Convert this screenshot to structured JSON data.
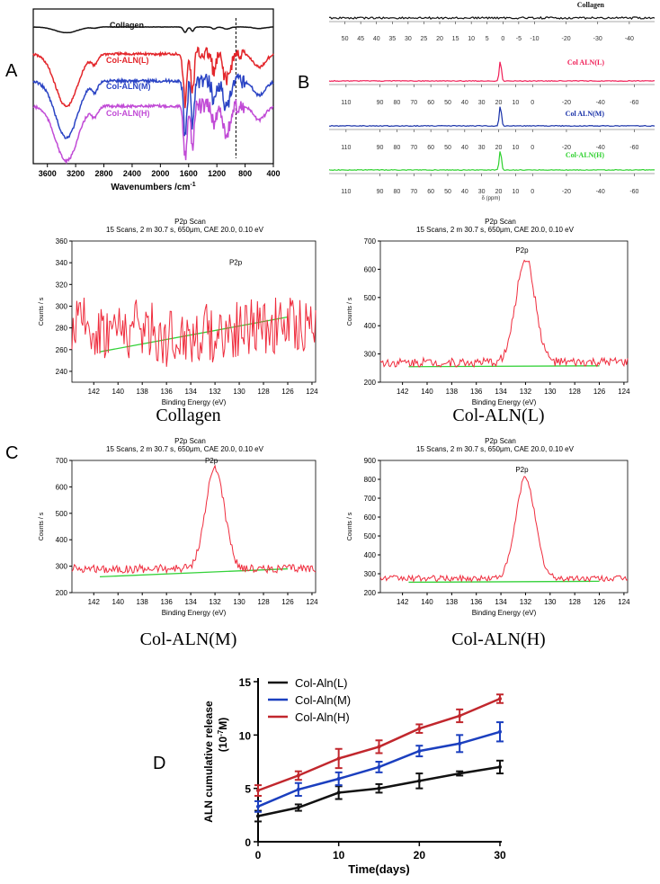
{
  "panel_labels": {
    "a": "A",
    "b": "B",
    "c": "C",
    "d": "D"
  },
  "colors": {
    "collagen": "#111111",
    "alnL": "#e3262b",
    "alnM": "#2a43c4",
    "alnH": "#c14bd6",
    "nmrL": "#f01d56",
    "nmrM": "#1730a8",
    "nmrH": "#2ed12e",
    "xps": "#ef2b3c",
    "xps_bg": "#35d23a",
    "relL": "#111111",
    "relM": "#1b3fbf",
    "relH": "#c1272d"
  },
  "chart_data": [
    {
      "panel": "A",
      "type": "line",
      "xlabel": "Wavenumbers /cm",
      "xlabel_sup": "-1",
      "xticks": [
        3600,
        3200,
        2800,
        2400,
        2000,
        1600,
        1200,
        800,
        400
      ],
      "xlim": [
        3800,
        400
      ],
      "dashed_marker_x": 930,
      "series": [
        {
          "name": "Collagen",
          "offset": 0
        },
        {
          "name": "Col-ALN(L)",
          "offset": 1
        },
        {
          "name": "Col-ALN(M)",
          "offset": 2
        },
        {
          "name": "Col-ALN(H)",
          "offset": 3
        }
      ]
    },
    {
      "panel": "B",
      "type": "line",
      "xlabel": "δ (ppm)",
      "subplots": [
        {
          "name": "Collagen",
          "xticks": [
            50,
            45,
            40,
            35,
            30,
            25,
            20,
            15,
            10,
            5,
            0,
            -5,
            -10,
            -20,
            -30,
            -40
          ],
          "peak": null
        },
        {
          "name": "Col ALN(L)",
          "xticks": [
            110,
            90,
            80,
            70,
            60,
            50,
            40,
            30,
            20,
            10,
            0,
            -20,
            -40,
            -60
          ],
          "peak": 19
        },
        {
          "name": "Col ALN(M)",
          "xticks": [
            110,
            90,
            80,
            70,
            60,
            50,
            40,
            30,
            20,
            10,
            0,
            -20,
            -40,
            -60
          ],
          "peak": 19
        },
        {
          "name": "Col-ALN(H)",
          "xticks": [
            110,
            90,
            80,
            70,
            60,
            50,
            40,
            30,
            20,
            10,
            0,
            -20,
            -40,
            -60
          ],
          "peak": 19
        }
      ]
    },
    {
      "panel": "C",
      "type": "line",
      "header1": "P2p Scan",
      "header2": "15 Scans,  2 m 30.7 s,  650μm,  CAE 20.0,  0.10 eV",
      "xlabel": "Binding Energy (eV)",
      "ylabel": "Counts / s",
      "peak_label": "P2p",
      "xticks": [
        142,
        140,
        138,
        136,
        134,
        132,
        130,
        128,
        126,
        124
      ],
      "subplots": [
        {
          "caption": "Collagen",
          "yticks": [
            240,
            260,
            280,
            300,
            320,
            340,
            360
          ],
          "ylim": [
            230,
            360
          ],
          "peak_center": null,
          "peak_height": 0,
          "baseline": [
            258,
            290
          ],
          "noise_base": 280
        },
        {
          "caption": "Col-ALN(L)",
          "yticks": [
            200,
            300,
            400,
            500,
            600,
            700
          ],
          "ylim": [
            200,
            700
          ],
          "peak_center": 132,
          "peak_height": 640,
          "baseline": [
            255,
            258
          ],
          "noise_base": 270
        },
        {
          "caption": "Col-ALN(M)",
          "yticks": [
            200,
            300,
            400,
            500,
            600,
            700
          ],
          "ylim": [
            200,
            700
          ],
          "peak_center": 132,
          "peak_height": 670,
          "baseline": [
            260,
            290
          ],
          "noise_base": 290
        },
        {
          "caption": "Col-ALN(H)",
          "yticks": [
            200,
            300,
            400,
            500,
            600,
            700,
            800,
            900
          ],
          "ylim": [
            200,
            900
          ],
          "peak_center": 132,
          "peak_height": 810,
          "baseline": [
            255,
            260
          ],
          "noise_base": 275
        }
      ]
    },
    {
      "panel": "D",
      "type": "line",
      "xlabel": "Time(days)",
      "ylabel": "ALN cumulative release",
      "ylabel2": "(10",
      "ylabel2_sup": "-7",
      "ylabel2_end": "M)",
      "xlim": [
        0,
        30
      ],
      "ylim": [
        0,
        15
      ],
      "xticks": [
        0,
        10,
        20,
        30
      ],
      "yticks": [
        0,
        5,
        10,
        15
      ],
      "x": [
        0,
        5,
        10,
        15,
        20,
        25,
        30
      ],
      "series": [
        {
          "name": "Col-Aln(L)",
          "values": [
            2.4,
            3.2,
            4.6,
            5.0,
            5.7,
            6.4,
            7.0
          ],
          "errors": [
            0.5,
            0.3,
            0.6,
            0.4,
            0.7,
            0.2,
            0.6
          ]
        },
        {
          "name": "Col-Aln(M)",
          "values": [
            3.3,
            4.9,
            5.9,
            7.0,
            8.5,
            9.2,
            10.3
          ],
          "errors": [
            0.5,
            0.6,
            0.6,
            0.5,
            0.5,
            0.8,
            0.9
          ]
        },
        {
          "name": "Col-Aln(H)",
          "values": [
            4.8,
            6.2,
            7.8,
            8.9,
            10.6,
            11.8,
            13.4
          ],
          "errors": [
            0.5,
            0.4,
            0.9,
            0.6,
            0.4,
            0.6,
            0.4
          ]
        }
      ]
    }
  ]
}
